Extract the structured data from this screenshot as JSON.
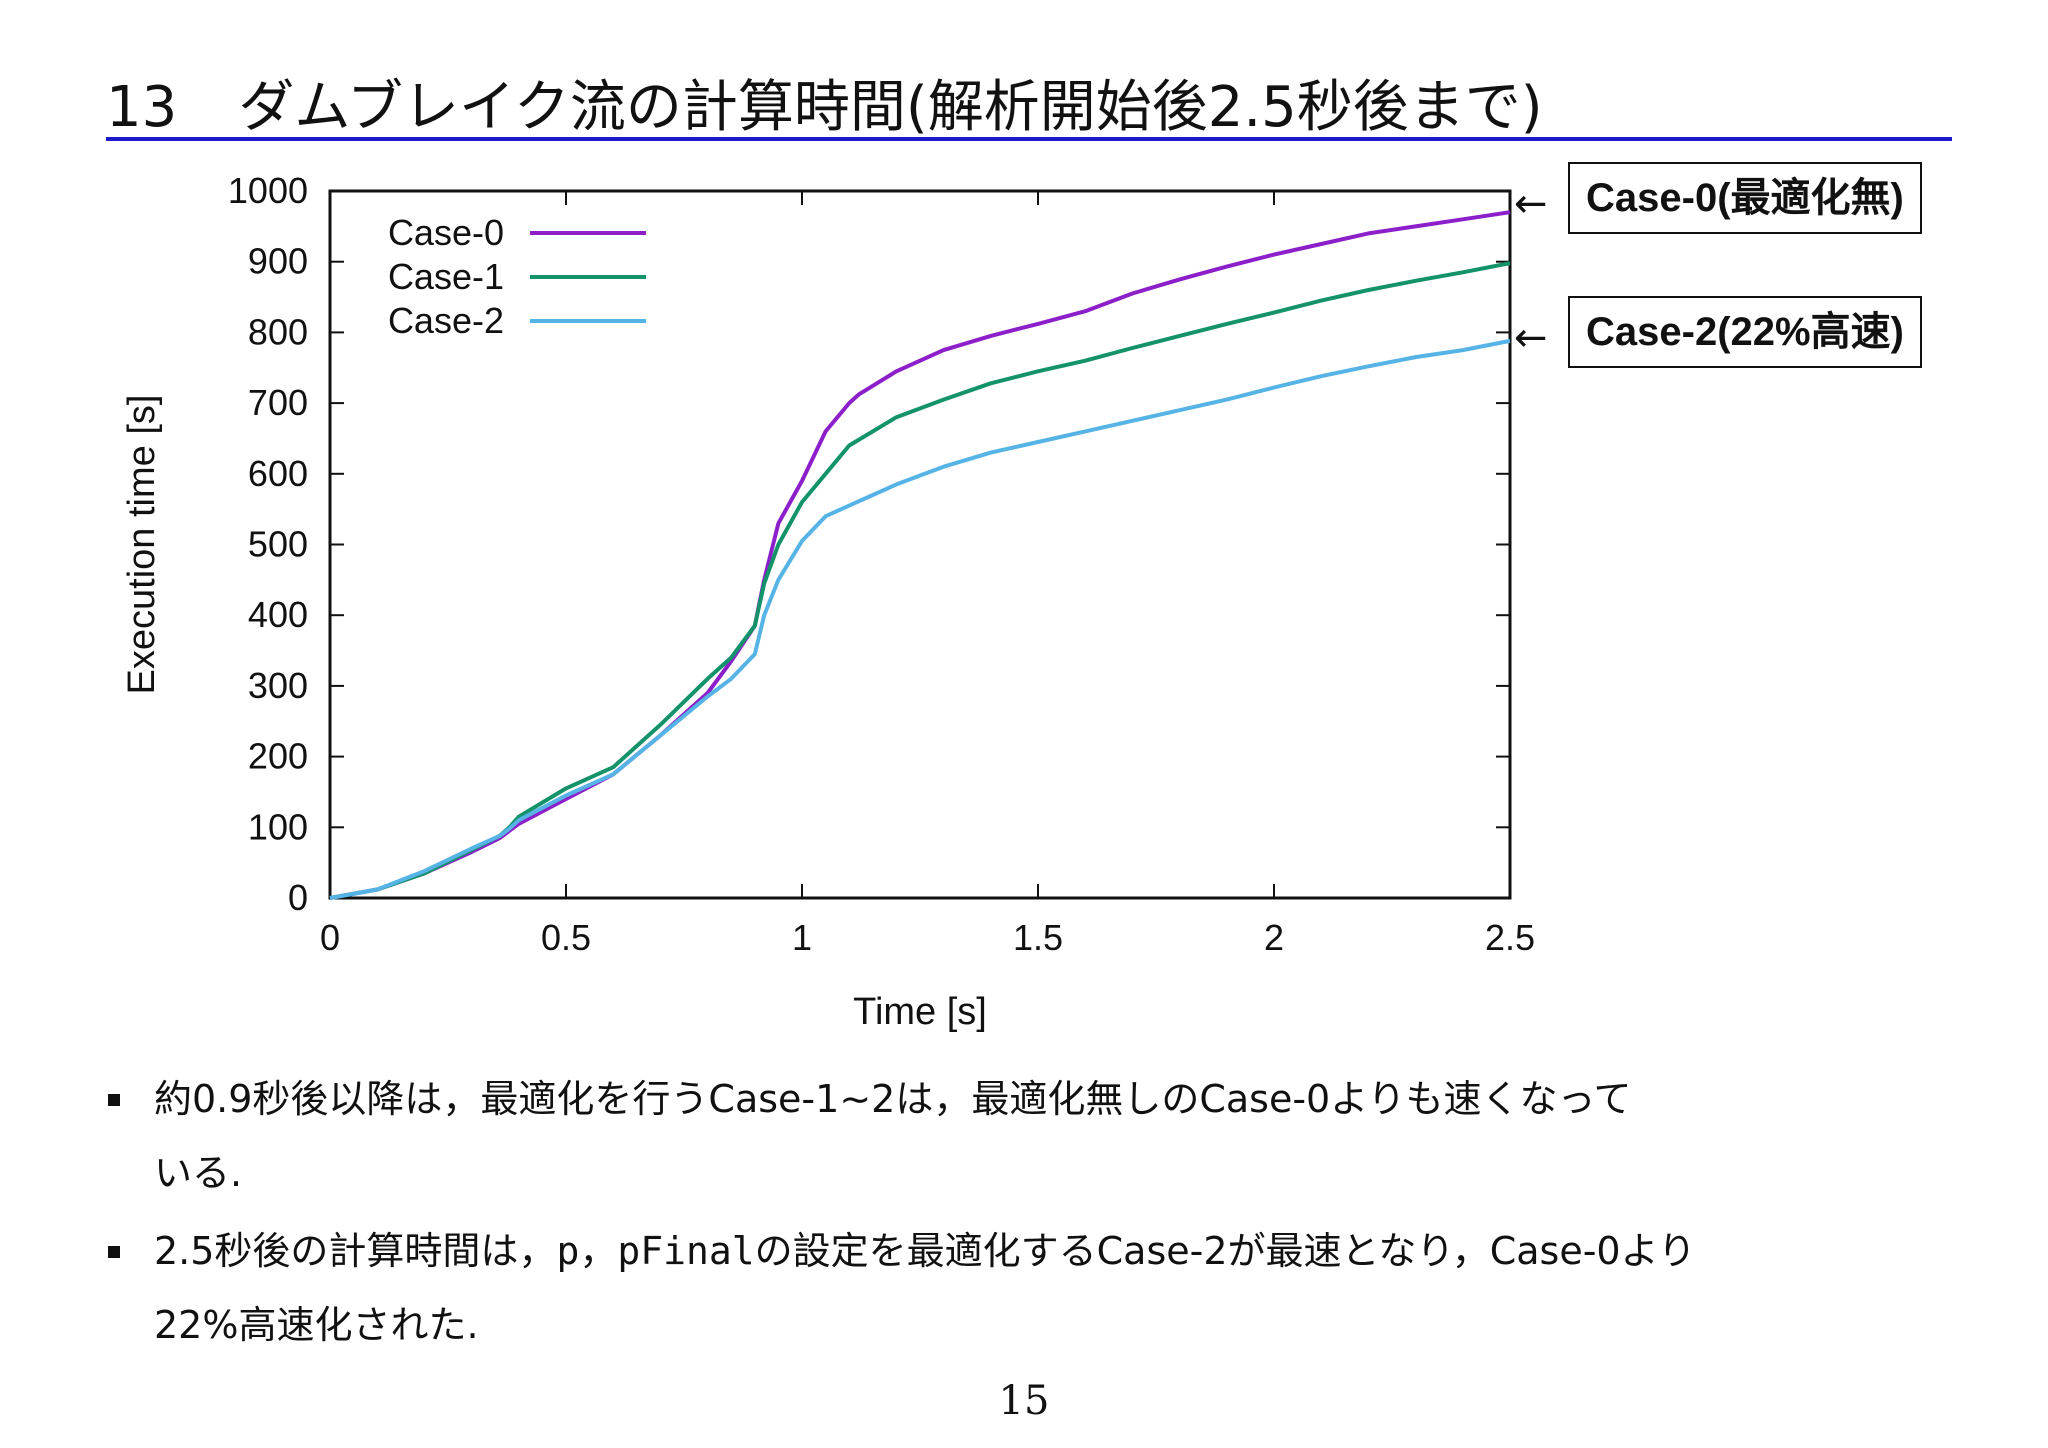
{
  "slide": {
    "section_number": "13",
    "title": "ダムブレイク流の計算時間(解析開始後2.5秒後まで)",
    "title_rule_color": "#1b1bc9",
    "page_number": "15"
  },
  "callouts": [
    {
      "arrow": "←",
      "label": "Case-0(最適化無)"
    },
    {
      "arrow": "←",
      "label": "Case-2(22%高速)"
    }
  ],
  "bullets": [
    {
      "lines": [
        "約0.9秒後以降は，最適化を行うCase-1∼2は，最適化無しのCase-0よりも速くなって",
        "いる."
      ]
    },
    {
      "line1_a": "2.5秒後の計算時間は，",
      "code1": "p",
      "sep": "，",
      "code2": "pFinal",
      "line1_b": "の設定を最適化するCase-2が最速となり，Case-0より",
      "line2": "22%高速化された."
    }
  ],
  "chart_data": {
    "type": "line",
    "xlabel": "Time [s]",
    "ylabel": "Execution time [s]",
    "xlim": [
      0,
      2.5
    ],
    "ylim": [
      0,
      1000
    ],
    "xticks": [
      0,
      0.5,
      1,
      1.5,
      2,
      2.5
    ],
    "xtick_labels": [
      "0",
      "0.5",
      "1",
      "1.5",
      "2",
      "2.5"
    ],
    "yticks": [
      0,
      100,
      200,
      300,
      400,
      500,
      600,
      700,
      800,
      900,
      1000
    ],
    "ytick_labels": [
      "0",
      "100",
      "200",
      "300",
      "400",
      "500",
      "600",
      "700",
      "800",
      "900",
      "1000"
    ],
    "grid": false,
    "legend_position": "top-left",
    "series": [
      {
        "name": "Case-0",
        "color": "#8c1fc9",
        "x": [
          0,
          0.1,
          0.2,
          0.3,
          0.36,
          0.38,
          0.4,
          0.5,
          0.6,
          0.7,
          0.8,
          0.85,
          0.9,
          0.92,
          0.95,
          1.0,
          1.05,
          1.1,
          1.12,
          1.2,
          1.3,
          1.4,
          1.5,
          1.6,
          1.7,
          1.8,
          1.9,
          2.0,
          2.1,
          2.2,
          2.3,
          2.4,
          2.5
        ],
        "y": [
          0,
          12,
          35,
          65,
          85,
          95,
          105,
          140,
          175,
          230,
          290,
          335,
          385,
          450,
          530,
          590,
          660,
          700,
          712,
          745,
          775,
          795,
          812,
          830,
          855,
          875,
          893,
          910,
          925,
          940,
          950,
          960,
          970
        ]
      },
      {
        "name": "Case-1",
        "color": "#14936b",
        "x": [
          0,
          0.1,
          0.2,
          0.3,
          0.36,
          0.38,
          0.4,
          0.5,
          0.6,
          0.7,
          0.8,
          0.85,
          0.9,
          0.92,
          0.95,
          1.0,
          1.05,
          1.1,
          1.2,
          1.3,
          1.4,
          1.5,
          1.6,
          1.7,
          1.8,
          1.9,
          2.0,
          2.1,
          2.2,
          2.3,
          2.4,
          2.5
        ],
        "y": [
          0,
          12,
          35,
          68,
          88,
          100,
          115,
          155,
          185,
          245,
          310,
          340,
          385,
          445,
          500,
          560,
          600,
          640,
          680,
          705,
          728,
          745,
          760,
          778,
          795,
          812,
          828,
          845,
          860,
          873,
          885,
          898
        ]
      },
      {
        "name": "Case-2",
        "color": "#56b3e6",
        "x": [
          0,
          0.1,
          0.2,
          0.3,
          0.36,
          0.38,
          0.4,
          0.5,
          0.6,
          0.7,
          0.8,
          0.85,
          0.9,
          0.92,
          0.95,
          1.0,
          1.05,
          1.1,
          1.15,
          1.2,
          1.3,
          1.4,
          1.5,
          1.6,
          1.7,
          1.8,
          1.9,
          2.0,
          2.1,
          2.2,
          2.3,
          2.4,
          2.5
        ],
        "y": [
          0,
          12,
          38,
          70,
          88,
          98,
          110,
          145,
          175,
          230,
          285,
          310,
          345,
          400,
          450,
          505,
          540,
          555,
          570,
          585,
          610,
          630,
          645,
          660,
          675,
          690,
          705,
          722,
          738,
          752,
          765,
          775,
          788
        ]
      }
    ]
  }
}
